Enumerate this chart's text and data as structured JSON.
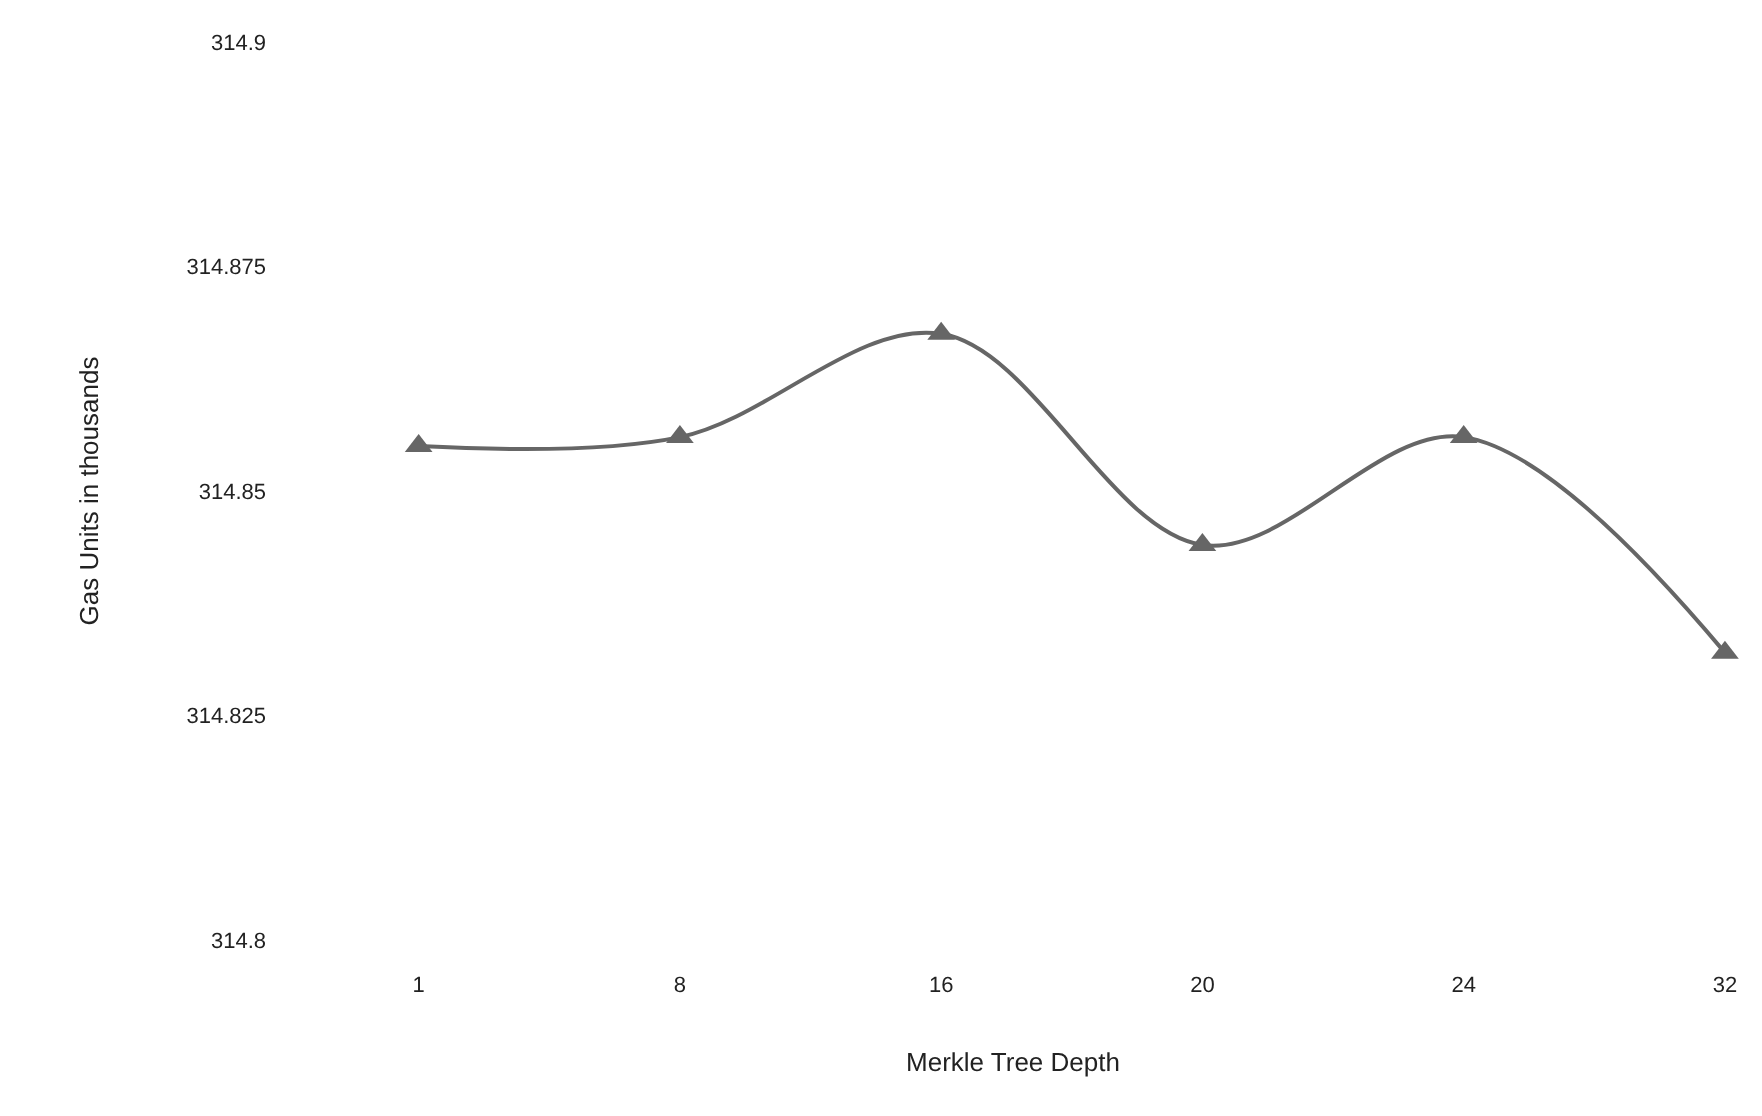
{
  "chart_data": {
    "type": "line",
    "xlabel": "Merkle Tree Depth",
    "ylabel": "Gas Units in thousands",
    "categories": [
      "1",
      "8",
      "16",
      "20",
      "24",
      "32"
    ],
    "series": [
      {
        "color": "#666666",
        "values": [
          314.855,
          314.856,
          314.8675,
          314.844,
          314.856,
          314.832
        ]
      }
    ],
    "ylim": [
      314.8,
      314.9
    ],
    "yticks": [
      314.8,
      314.825,
      314.85,
      314.875,
      314.9
    ],
    "marker": "triangle",
    "line_style": "solid",
    "legend": false
  }
}
